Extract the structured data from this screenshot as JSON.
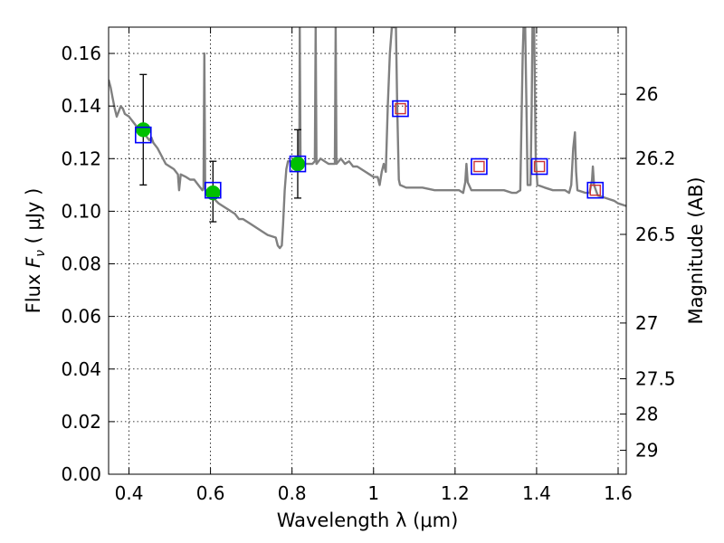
{
  "chart_data": {
    "type": "scatter",
    "xlabel": "Wavelength  λ (μm)",
    "ylabel_parts": [
      "Flux  ",
      "F",
      "ν",
      "  ( μJy )"
    ],
    "y2label": "Magnitude (AB)",
    "xlim": [
      0.35,
      1.62
    ],
    "ylim": [
      0.0,
      0.17
    ],
    "x_ticks": [
      0.4,
      0.6,
      0.8,
      1.0,
      1.2,
      1.4,
      1.6
    ],
    "x_tick_labels": [
      "0.4",
      "0.6",
      "0.8",
      "1",
      "1.2",
      "1.4",
      "1.6"
    ],
    "y_ticks": [
      0.0,
      0.02,
      0.04,
      0.06,
      0.08,
      0.1,
      0.12,
      0.14,
      0.16
    ],
    "y_tick_labels": [
      "0.00",
      "0.02",
      "0.04",
      "0.06",
      "0.08",
      "0.10",
      "0.12",
      "0.14",
      "0.16"
    ],
    "y2_ticks": [
      {
        "flux": 0.1445,
        "label": "26"
      },
      {
        "flux": 0.1201,
        "label": "26.2"
      },
      {
        "flux": 0.0912,
        "label": "26.5"
      },
      {
        "flux": 0.0575,
        "label": "27"
      },
      {
        "flux": 0.0363,
        "label": "27.5"
      },
      {
        "flux": 0.0229,
        "label": "28"
      },
      {
        "flux": 0.0091,
        "label": "29"
      }
    ],
    "grid": true,
    "colors": {
      "spectrum": "#808080",
      "observed": "#00c000",
      "model_band": "#0000ff",
      "upper_limit": "#cc3333",
      "errorbar": "#000000"
    },
    "series": [
      {
        "role": "model_spectrum",
        "style": "line",
        "points": [
          [
            0.35,
            0.15
          ],
          [
            0.355,
            0.147
          ],
          [
            0.36,
            0.143
          ],
          [
            0.365,
            0.139
          ],
          [
            0.37,
            0.136
          ],
          [
            0.38,
            0.14
          ],
          [
            0.385,
            0.139
          ],
          [
            0.39,
            0.137
          ],
          [
            0.4,
            0.136
          ],
          [
            0.41,
            0.134
          ],
          [
            0.42,
            0.132
          ],
          [
            0.43,
            0.131
          ],
          [
            0.44,
            0.129
          ],
          [
            0.45,
            0.127
          ],
          [
            0.455,
            0.128
          ],
          [
            0.46,
            0.126
          ],
          [
            0.47,
            0.124
          ],
          [
            0.48,
            0.121
          ],
          [
            0.49,
            0.118
          ],
          [
            0.5,
            0.117
          ],
          [
            0.51,
            0.116
          ],
          [
            0.52,
            0.114
          ],
          [
            0.523,
            0.108
          ],
          [
            0.527,
            0.114
          ],
          [
            0.54,
            0.113
          ],
          [
            0.55,
            0.112
          ],
          [
            0.56,
            0.112
          ],
          [
            0.57,
            0.11
          ],
          [
            0.58,
            0.108
          ],
          [
            0.583,
            0.109
          ],
          [
            0.585,
            0.16
          ],
          [
            0.587,
            0.108
          ],
          [
            0.59,
            0.107
          ],
          [
            0.6,
            0.106
          ],
          [
            0.62,
            0.103
          ],
          [
            0.64,
            0.101
          ],
          [
            0.66,
            0.099
          ],
          [
            0.67,
            0.097
          ],
          [
            0.68,
            0.097
          ],
          [
            0.7,
            0.095
          ],
          [
            0.72,
            0.093
          ],
          [
            0.74,
            0.091
          ],
          [
            0.76,
            0.09
          ],
          [
            0.765,
            0.087
          ],
          [
            0.77,
            0.086
          ],
          [
            0.775,
            0.087
          ],
          [
            0.778,
            0.095
          ],
          [
            0.782,
            0.108
          ],
          [
            0.786,
            0.116
          ],
          [
            0.79,
            0.119
          ],
          [
            0.8,
            0.119
          ],
          [
            0.81,
            0.118
          ],
          [
            0.818,
            0.118
          ],
          [
            0.819,
            0.17
          ],
          [
            0.821,
            0.118
          ],
          [
            0.83,
            0.118
          ],
          [
            0.84,
            0.118
          ],
          [
            0.85,
            0.118
          ],
          [
            0.856,
            0.119
          ],
          [
            0.858,
            0.17
          ],
          [
            0.86,
            0.118
          ],
          [
            0.87,
            0.12
          ],
          [
            0.88,
            0.119
          ],
          [
            0.89,
            0.118
          ],
          [
            0.9,
            0.118
          ],
          [
            0.905,
            0.118
          ],
          [
            0.907,
            0.17
          ],
          [
            0.909,
            0.118
          ],
          [
            0.92,
            0.12
          ],
          [
            0.93,
            0.118
          ],
          [
            0.94,
            0.119
          ],
          [
            0.95,
            0.117
          ],
          [
            0.96,
            0.117
          ],
          [
            0.97,
            0.116
          ],
          [
            0.98,
            0.115
          ],
          [
            0.99,
            0.114
          ],
          [
            1.0,
            0.113
          ],
          [
            1.01,
            0.113
          ],
          [
            1.015,
            0.11
          ],
          [
            1.02,
            0.115
          ],
          [
            1.025,
            0.118
          ],
          [
            1.03,
            0.115
          ],
          [
            1.035,
            0.14
          ],
          [
            1.04,
            0.16
          ],
          [
            1.045,
            0.17
          ],
          [
            1.055,
            0.17
          ],
          [
            1.058,
            0.14
          ],
          [
            1.062,
            0.112
          ],
          [
            1.065,
            0.11
          ],
          [
            1.08,
            0.109
          ],
          [
            1.1,
            0.109
          ],
          [
            1.12,
            0.109
          ],
          [
            1.15,
            0.108
          ],
          [
            1.18,
            0.108
          ],
          [
            1.2,
            0.108
          ],
          [
            1.21,
            0.108
          ],
          [
            1.22,
            0.107
          ],
          [
            1.225,
            0.111
          ],
          [
            1.228,
            0.118
          ],
          [
            1.231,
            0.111
          ],
          [
            1.24,
            0.108
          ],
          [
            1.26,
            0.108
          ],
          [
            1.28,
            0.108
          ],
          [
            1.3,
            0.108
          ],
          [
            1.32,
            0.108
          ],
          [
            1.34,
            0.107
          ],
          [
            1.35,
            0.107
          ],
          [
            1.36,
            0.108
          ],
          [
            1.366,
            0.16
          ],
          [
            1.368,
            0.17
          ],
          [
            1.372,
            0.17
          ],
          [
            1.375,
            0.14
          ],
          [
            1.378,
            0.11
          ],
          [
            1.385,
            0.11
          ],
          [
            1.388,
            0.14
          ],
          [
            1.39,
            0.17
          ],
          [
            1.394,
            0.17
          ],
          [
            1.398,
            0.12
          ],
          [
            1.402,
            0.11
          ],
          [
            1.42,
            0.109
          ],
          [
            1.44,
            0.108
          ],
          [
            1.46,
            0.108
          ],
          [
            1.47,
            0.108
          ],
          [
            1.48,
            0.107
          ],
          [
            1.485,
            0.11
          ],
          [
            1.49,
            0.124
          ],
          [
            1.494,
            0.13
          ],
          [
            1.497,
            0.115
          ],
          [
            1.5,
            0.108
          ],
          [
            1.52,
            0.107
          ],
          [
            1.53,
            0.107
          ],
          [
            1.536,
            0.112
          ],
          [
            1.538,
            0.117
          ],
          [
            1.541,
            0.11
          ],
          [
            1.55,
            0.106
          ],
          [
            1.57,
            0.105
          ],
          [
            1.59,
            0.104
          ],
          [
            1.6,
            0.103
          ],
          [
            1.62,
            0.102
          ]
        ]
      },
      {
        "role": "observed_photometry",
        "style": "points_with_errorbars",
        "points": [
          {
            "x": 0.435,
            "y": 0.131,
            "yerr_low": 0.11,
            "yerr_high": 0.152
          },
          {
            "x": 0.606,
            "y": 0.107,
            "yerr_low": 0.096,
            "yerr_high": 0.119
          },
          {
            "x": 0.814,
            "y": 0.118,
            "yerr_low": 0.105,
            "yerr_high": 0.131
          }
        ]
      },
      {
        "role": "model_band_flux",
        "style": "open_squares",
        "points": [
          {
            "x": 0.435,
            "y": 0.129
          },
          {
            "x": 0.606,
            "y": 0.108
          },
          {
            "x": 0.814,
            "y": 0.118
          },
          {
            "x": 1.066,
            "y": 0.139
          },
          {
            "x": 1.259,
            "y": 0.117
          },
          {
            "x": 1.407,
            "y": 0.117
          },
          {
            "x": 1.544,
            "y": 0.108
          }
        ]
      },
      {
        "role": "upper_limits",
        "style": "small_open_squares",
        "points": [
          {
            "x": 1.066,
            "y": 0.139
          },
          {
            "x": 1.259,
            "y": 0.117
          },
          {
            "x": 1.407,
            "y": 0.117
          },
          {
            "x": 1.544,
            "y": 0.108
          }
        ]
      }
    ]
  }
}
